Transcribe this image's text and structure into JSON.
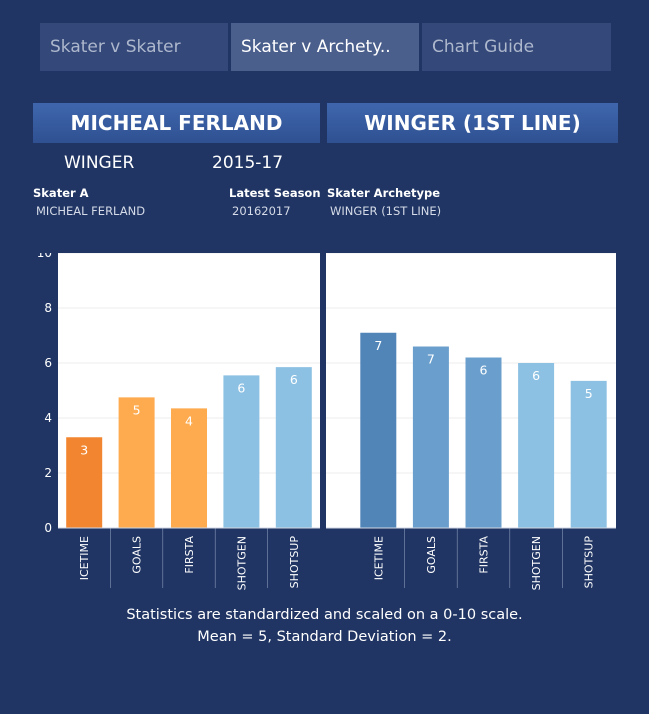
{
  "tabs": [
    {
      "label": "Skater v Skater",
      "active": false
    },
    {
      "label": "Skater v Archety..",
      "active": true
    },
    {
      "label": "Chart Guide",
      "active": false
    }
  ],
  "left_banner": "MICHEAL FERLAND",
  "right_banner": "WINGER (1ST LINE)",
  "position": "WINGER",
  "season_range": "2015-17",
  "fields": {
    "skater_a_label": "Skater A",
    "skater_a_value": "MICHEAL FERLAND",
    "latest_season_label": "Latest Season",
    "latest_season_value": "20162017",
    "archetype_label": "Skater Archetype",
    "archetype_value": "WINGER (1ST LINE)"
  },
  "chart_data": [
    {
      "type": "bar",
      "categories": [
        "ICETIME",
        "GOALS",
        "FIRSTA",
        "SHOTGEN",
        "SHOTSUP"
      ],
      "values": [
        3.3,
        4.75,
        4.35,
        5.55,
        5.85
      ],
      "labels": [
        "3",
        "5",
        "4",
        "6",
        "6"
      ],
      "colors": [
        "#f28630",
        "#fdab4e",
        "#fdab4e",
        "#8dc1e3",
        "#8dc1e3"
      ],
      "yticks": [
        "0",
        "2",
        "4",
        "6",
        "8",
        "10"
      ],
      "ylim": [
        0,
        10
      ],
      "grid": true
    },
    {
      "type": "bar",
      "categories": [
        "ICETIME",
        "GOALS",
        "FIRSTA",
        "SHOTGEN",
        "SHOTSUP"
      ],
      "values": [
        7.1,
        6.6,
        6.2,
        6.0,
        5.35
      ],
      "labels": [
        "7",
        "7",
        "6",
        "6",
        "5"
      ],
      "colors": [
        "#5185b8",
        "#6a9fcd",
        "#6a9fcd",
        "#8dc1e3",
        "#8dc1e3"
      ],
      "yticks": [
        "0",
        "2",
        "4",
        "6",
        "8",
        "10"
      ],
      "ylim": [
        0,
        10
      ],
      "grid": true
    }
  ],
  "footnote": {
    "line1": "Statistics are standardized and scaled on a 0-10 scale.",
    "line2": "Mean = 5, Standard Deviation = 2."
  }
}
